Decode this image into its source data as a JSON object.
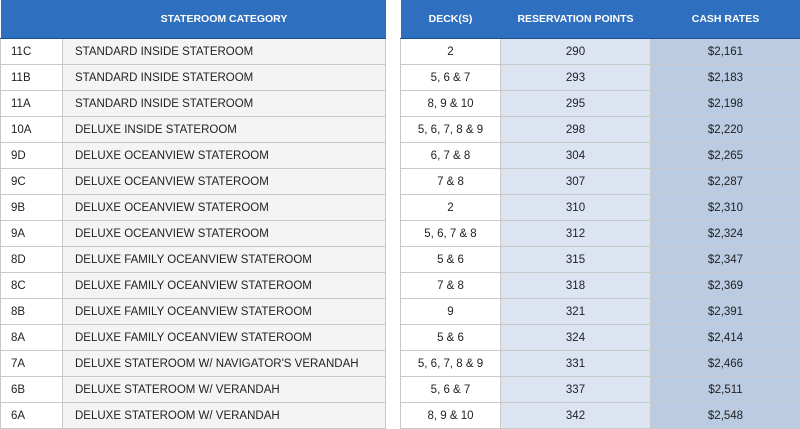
{
  "headers": {
    "code": "",
    "category": "STATEROOM CATEGORY",
    "decks": "DECK(S)",
    "points": "RESERVATION POINTS",
    "cash": "CASH RATES"
  },
  "rows": [
    {
      "code": "11C",
      "category": "STANDARD INSIDE STATEROOM",
      "decks": "2",
      "points": "290",
      "cash": "$2,161"
    },
    {
      "code": "11B",
      "category": "STANDARD INSIDE STATEROOM",
      "decks": "5, 6 & 7",
      "points": "293",
      "cash": "$2,183"
    },
    {
      "code": "11A",
      "category": "STANDARD INSIDE STATEROOM",
      "decks": "8, 9 & 10",
      "points": "295",
      "cash": "$2,198"
    },
    {
      "code": "10A",
      "category": "DELUXE INSIDE STATEROOM",
      "decks": "5, 6, 7, 8 & 9",
      "points": "298",
      "cash": "$2,220"
    },
    {
      "code": "9D",
      "category": "DELUXE OCEANVIEW STATEROOM",
      "decks": "6, 7 & 8",
      "points": "304",
      "cash": "$2,265"
    },
    {
      "code": "9C",
      "category": "DELUXE OCEANVIEW STATEROOM",
      "decks": "7 & 8",
      "points": "307",
      "cash": "$2,287"
    },
    {
      "code": "9B",
      "category": "DELUXE OCEANVIEW STATEROOM",
      "decks": "2",
      "points": "310",
      "cash": "$2,310"
    },
    {
      "code": "9A",
      "category": "DELUXE OCEANVIEW STATEROOM",
      "decks": "5, 6, 7 & 8",
      "points": "312",
      "cash": "$2,324"
    },
    {
      "code": "8D",
      "category": "DELUXE FAMILY OCEANVIEW STATEROOM",
      "decks": "5 & 6",
      "points": "315",
      "cash": "$2,347"
    },
    {
      "code": "8C",
      "category": "DELUXE FAMILY OCEANVIEW STATEROOM",
      "decks": "7 & 8",
      "points": "318",
      "cash": "$2,369"
    },
    {
      "code": "8B",
      "category": "DELUXE FAMILY OCEANVIEW STATEROOM",
      "decks": "9",
      "points": "321",
      "cash": "$2,391"
    },
    {
      "code": "8A",
      "category": "DELUXE FAMILY OCEANVIEW STATEROOM",
      "decks": "5 & 6",
      "points": "324",
      "cash": "$2,414"
    },
    {
      "code": "7A",
      "category": "DELUXE STATEROOM W/ NAVIGATOR'S VERANDAH",
      "decks": "5, 6, 7, 8 & 9",
      "points": "331",
      "cash": "$2,466"
    },
    {
      "code": "6B",
      "category": "DELUXE STATEROOM W/ VERANDAH",
      "decks": "5, 6 & 7",
      "points": "337",
      "cash": "$2,511"
    },
    {
      "code": "6A",
      "category": "DELUXE STATEROOM W/ VERANDAH",
      "decks": "8, 9 & 10",
      "points": "342",
      "cash": "$2,548"
    }
  ]
}
